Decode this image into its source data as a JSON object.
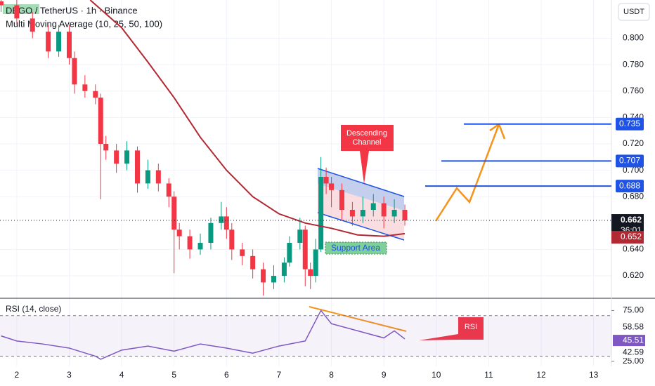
{
  "chart_data": {
    "type": "candlestick",
    "title": "DEGO / TetherUS · 1h · Binance",
    "subtitle": "Multi Moving Average (10, 25, 50, 100)",
    "currency": "USDT",
    "x": [
      1.7,
      2.0,
      2.3,
      2.6,
      2.8,
      3.0,
      3.1,
      3.3,
      3.5,
      3.6,
      3.7,
      3.9,
      4.1,
      4.3,
      4.5,
      4.7,
      4.9,
      5.0,
      5.1,
      5.3,
      5.5,
      5.7,
      5.9,
      6.0,
      6.1,
      6.3,
      6.5,
      6.7,
      6.9,
      7.1,
      7.2,
      7.4,
      7.5,
      7.6,
      7.7,
      7.8,
      7.9,
      8.0,
      8.2,
      8.4,
      8.6,
      8.8,
      9.0,
      9.2,
      9.4
    ],
    "open": [
      0.828,
      0.825,
      0.815,
      0.805,
      0.79,
      0.805,
      0.785,
      0.765,
      0.76,
      0.755,
      0.72,
      0.715,
      0.705,
      0.715,
      0.69,
      0.7,
      0.69,
      0.68,
      0.655,
      0.65,
      0.64,
      0.645,
      0.66,
      0.665,
      0.655,
      0.64,
      0.635,
      0.625,
      0.615,
      0.62,
      0.63,
      0.645,
      0.655,
      0.625,
      0.62,
      0.64,
      0.695,
      0.69,
      0.685,
      0.67,
      0.665,
      0.67,
      0.675,
      0.665,
      0.67
    ],
    "high": [
      0.832,
      0.829,
      0.82,
      0.81,
      0.81,
      0.81,
      0.79,
      0.772,
      0.765,
      0.758,
      0.726,
      0.72,
      0.722,
      0.718,
      0.708,
      0.705,
      0.694,
      0.684,
      0.66,
      0.655,
      0.652,
      0.664,
      0.676,
      0.672,
      0.66,
      0.645,
      0.64,
      0.63,
      0.628,
      0.634,
      0.65,
      0.664,
      0.658,
      0.63,
      0.648,
      0.71,
      0.702,
      0.695,
      0.69,
      0.676,
      0.68,
      0.682,
      0.68,
      0.678,
      0.674
    ],
    "low": [
      0.82,
      0.81,
      0.8,
      0.785,
      0.786,
      0.78,
      0.758,
      0.755,
      0.75,
      0.678,
      0.708,
      0.698,
      0.7,
      0.683,
      0.686,
      0.684,
      0.672,
      0.622,
      0.64,
      0.633,
      0.636,
      0.64,
      0.655,
      0.648,
      0.632,
      0.628,
      0.618,
      0.605,
      0.61,
      0.615,
      0.627,
      0.64,
      0.612,
      0.61,
      0.615,
      0.638,
      0.682,
      0.672,
      0.662,
      0.658,
      0.66,
      0.665,
      0.656,
      0.66,
      0.658
    ],
    "close": [
      0.825,
      0.815,
      0.805,
      0.79,
      0.805,
      0.785,
      0.765,
      0.76,
      0.755,
      0.72,
      0.715,
      0.705,
      0.715,
      0.69,
      0.7,
      0.69,
      0.68,
      0.655,
      0.65,
      0.64,
      0.645,
      0.66,
      0.665,
      0.655,
      0.64,
      0.635,
      0.625,
      0.615,
      0.62,
      0.63,
      0.645,
      0.655,
      0.625,
      0.62,
      0.64,
      0.695,
      0.69,
      0.685,
      0.67,
      0.665,
      0.67,
      0.675,
      0.665,
      0.67,
      0.662
    ],
    "up_color": "#089981",
    "down_color": "#f23645",
    "ma": {
      "color": "#b22833",
      "x": [
        3.4,
        4.0,
        4.5,
        5.0,
        5.5,
        6.0,
        6.5,
        7.0,
        7.5,
        8.0,
        8.5,
        9.0,
        9.4
      ],
      "values": [
        0.829,
        0.808,
        0.782,
        0.755,
        0.725,
        0.7,
        0.68,
        0.667,
        0.66,
        0.656,
        0.651,
        0.65,
        0.652
      ],
      "value_label": "0.652"
    },
    "last_price": {
      "value": 0.662,
      "label": "0.662"
    },
    "countdown": "36:01",
    "levels": [
      {
        "value": 0.735,
        "label": "0.735"
      },
      {
        "value": 0.707,
        "label": "0.707"
      },
      {
        "value": 0.688,
        "label": "0.688"
      }
    ],
    "xlim": [
      1.68,
      13.34
    ],
    "xticks": [
      2,
      3,
      4,
      5,
      6,
      7,
      8,
      9,
      10,
      11,
      12,
      13
    ],
    "ylim": [
      0.603,
      0.829
    ],
    "yticks": [
      {
        "value": 0.8,
        "label": "0.800"
      },
      {
        "value": 0.78,
        "label": "0.780"
      },
      {
        "value": 0.76,
        "label": "0.760"
      },
      {
        "value": 0.74,
        "label": "0.740"
      },
      {
        "value": 0.72,
        "label": "0.720"
      },
      {
        "value": 0.7,
        "label": "0.700"
      },
      {
        "value": 0.68,
        "label": "0.680"
      },
      {
        "value": 0.64,
        "label": "0.640"
      },
      {
        "value": 0.62,
        "label": "0.620"
      }
    ],
    "annotations": {
      "channel": [
        "Descending",
        "Channel"
      ],
      "support": "Support Area",
      "rsi": "RSI"
    },
    "rsi": {
      "title": "RSI (14, close)",
      "color": "#7e57c2",
      "x": [
        1.7,
        2.0,
        2.5,
        3.0,
        3.5,
        3.6,
        4.0,
        4.5,
        5.0,
        5.5,
        6.0,
        6.5,
        7.0,
        7.5,
        7.8,
        8.0,
        8.5,
        9.0,
        9.2,
        9.4
      ],
      "values": [
        50,
        45,
        42,
        38,
        30,
        27,
        36,
        40,
        35,
        42,
        38,
        33,
        40,
        45,
        75,
        62,
        55,
        48,
        55,
        47
      ],
      "ylim": [
        20,
        85
      ],
      "bands": [
        70,
        30
      ],
      "yticks": [
        {
          "value": 75,
          "label": "75.00"
        },
        {
          "value": 25,
          "label": "25.00"
        }
      ],
      "markers": [
        {
          "value": 58.58,
          "label": "58.58"
        },
        {
          "value": 45.51,
          "label": "45.51"
        },
        {
          "value": 42.59,
          "label": "42.59"
        }
      ]
    }
  }
}
